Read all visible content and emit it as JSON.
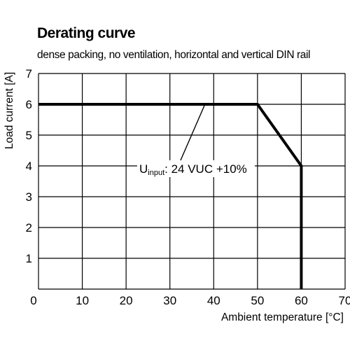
{
  "chart_data": {
    "type": "line",
    "title": "Derating curve",
    "subtitle": "dense packing, no ventilation, horizontal and vertical DIN rail",
    "xlabel": "Ambient temperature [°C]",
    "ylabel": "Load current [A]",
    "xlim": [
      0,
      70
    ],
    "ylim": [
      0,
      7
    ],
    "x_ticks": [
      "0",
      "10",
      "20",
      "30",
      "40",
      "50",
      "60",
      "70"
    ],
    "y_ticks": [
      "1",
      "2",
      "3",
      "4",
      "5",
      "6",
      "7"
    ],
    "grid": true,
    "series": [
      {
        "x": [
          0,
          50,
          60,
          60
        ],
        "y": [
          6,
          6,
          4,
          0
        ]
      }
    ],
    "annotation": {
      "base": "U",
      "subscript": "input",
      "rest": ": 24 VUC +10%",
      "target": [
        38,
        6
      ]
    }
  }
}
